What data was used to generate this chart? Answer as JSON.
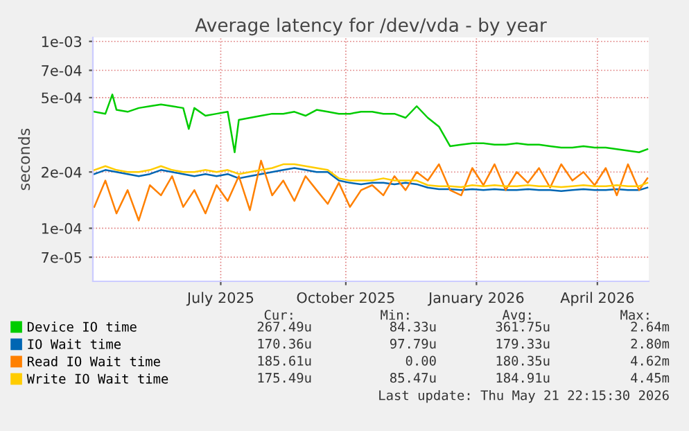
{
  "chart_data": {
    "type": "line",
    "title": "Average latency for /dev/vda - by year",
    "ylabel": "seconds",
    "log": "y",
    "grid": true,
    "legend": "bottom",
    "xlim": [
      "2025-04-16",
      "2026-05-21"
    ],
    "xticks": [
      {
        "value": "2025-07-17",
        "label": "July 2025"
      },
      {
        "value": "2025-10-15",
        "label": "October 2025"
      },
      {
        "value": "2026-01-17",
        "label": "January 2026"
      },
      {
        "value": "2026-04-14",
        "label": "April 2026"
      }
    ],
    "ylim": [
      5.2e-05,
      0.00105
    ],
    "yticks": [
      {
        "value": 7e-05,
        "label": "7e-05"
      },
      {
        "value": 0.0001,
        "label": "1e-04"
      },
      {
        "value": 0.0002,
        "label": "2e-04"
      },
      {
        "value": 0.0005,
        "label": "5e-04"
      },
      {
        "value": 0.0007,
        "label": "7e-04"
      },
      {
        "value": 0.001,
        "label": "1e-03"
      }
    ],
    "x": [
      "2025-04-17",
      "2025-04-25",
      "2025-05-03",
      "2025-05-11",
      "2025-05-19",
      "2025-05-27",
      "2025-06-04",
      "2025-06-12",
      "2025-06-20",
      "2025-06-28",
      "2025-07-06",
      "2025-07-14",
      "2025-07-22",
      "2025-07-30",
      "2025-08-07",
      "2025-08-15",
      "2025-08-23",
      "2025-08-31",
      "2025-09-08",
      "2025-09-16",
      "2025-09-24",
      "2025-10-02",
      "2025-10-10",
      "2025-10-18",
      "2025-10-26",
      "2025-11-03",
      "2025-11-11",
      "2025-11-19",
      "2025-11-27",
      "2025-12-05",
      "2025-12-13",
      "2025-12-21",
      "2025-12-29",
      "2026-01-06",
      "2026-01-14",
      "2026-01-22",
      "2026-01-30",
      "2026-02-07",
      "2026-02-15",
      "2026-02-23",
      "2026-03-03",
      "2026-03-11",
      "2026-03-19",
      "2026-03-27",
      "2026-04-04",
      "2026-04-12",
      "2026-04-20",
      "2026-04-28",
      "2026-05-06",
      "2026-05-14",
      "2026-05-20"
    ],
    "series": [
      {
        "name": "Device IO time",
        "color": "#00cc00",
        "x": [
          "2025-04-17",
          "2025-04-25",
          "2025-04-30",
          "2025-05-03",
          "2025-05-11",
          "2025-05-19",
          "2025-05-27",
          "2025-06-04",
          "2025-06-12",
          "2025-06-20",
          "2025-06-24",
          "2025-06-28",
          "2025-07-06",
          "2025-07-14",
          "2025-07-22",
          "2025-07-27",
          "2025-07-30",
          "2025-08-07",
          "2025-08-15",
          "2025-08-23",
          "2025-08-31",
          "2025-09-08",
          "2025-09-16",
          "2025-09-24",
          "2025-10-02",
          "2025-10-10",
          "2025-10-18",
          "2025-10-26",
          "2025-11-03",
          "2025-11-11",
          "2025-11-19",
          "2025-11-27",
          "2025-12-05",
          "2025-12-13",
          "2025-12-21",
          "2025-12-29",
          "2026-01-06",
          "2026-01-14",
          "2026-01-22",
          "2026-01-30",
          "2026-02-07",
          "2026-02-15",
          "2026-02-23",
          "2026-03-03",
          "2026-03-11",
          "2026-03-19",
          "2026-03-27",
          "2026-04-04",
          "2026-04-12",
          "2026-04-20",
          "2026-04-28",
          "2026-05-06",
          "2026-05-14",
          "2026-05-20"
        ],
        "values": [
          0.00042,
          0.00041,
          0.00052,
          0.00043,
          0.00042,
          0.00044,
          0.00045,
          0.00046,
          0.00045,
          0.00044,
          0.00034,
          0.00044,
          0.0004,
          0.00041,
          0.00042,
          0.000255,
          0.00038,
          0.00039,
          0.0004,
          0.00041,
          0.00041,
          0.00042,
          0.0004,
          0.00043,
          0.00042,
          0.00041,
          0.00041,
          0.00042,
          0.00042,
          0.00041,
          0.00041,
          0.00039,
          0.00045,
          0.00039,
          0.00035,
          0.000275,
          0.00028,
          0.000285,
          0.000285,
          0.00028,
          0.00028,
          0.000285,
          0.00028,
          0.00028,
          0.000275,
          0.00027,
          0.00027,
          0.000275,
          0.00027,
          0.00027,
          0.000265,
          0.00026,
          0.000255,
          0.000265
        ]
      },
      {
        "name": "IO Wait time",
        "color": "#0066b3",
        "values": [
          0.000195,
          0.000205,
          0.0002,
          0.000195,
          0.00019,
          0.000195,
          0.000205,
          0.0002,
          0.000195,
          0.00019,
          0.000195,
          0.00019,
          0.000195,
          0.000185,
          0.00019,
          0.000195,
          0.0002,
          0.000205,
          0.00021,
          0.000205,
          0.0002,
          0.0002,
          0.00018,
          0.000175,
          0.000172,
          0.000175,
          0.000175,
          0.000172,
          0.000175,
          0.000172,
          0.000165,
          0.000162,
          0.000162,
          0.00016,
          0.000162,
          0.00016,
          0.000162,
          0.00016,
          0.00016,
          0.000162,
          0.00016,
          0.00016,
          0.000158,
          0.00016,
          0.000162,
          0.00016,
          0.00016,
          0.000162,
          0.00016,
          0.00016,
          0.000165
        ]
      },
      {
        "name": "Read IO Wait time",
        "color": "#ff8000",
        "values": [
          0.00013,
          0.00018,
          0.00012,
          0.00016,
          0.00011,
          0.00017,
          0.00015,
          0.00019,
          0.00013,
          0.00016,
          0.00012,
          0.00017,
          0.00014,
          0.00019,
          0.000125,
          0.00023,
          0.00015,
          0.00018,
          0.00014,
          0.00019,
          0.00016,
          0.000135,
          0.000175,
          0.00013,
          0.00016,
          0.00017,
          0.00015,
          0.00019,
          0.00016,
          0.0002,
          0.00018,
          0.00022,
          0.00016,
          0.00015,
          0.00021,
          0.00017,
          0.00022,
          0.00016,
          0.0002,
          0.000175,
          0.00021,
          0.000165,
          0.00022,
          0.00018,
          0.0002,
          0.00017,
          0.00021,
          0.00015,
          0.00022,
          0.00016,
          0.000185
        ]
      },
      {
        "name": "Write IO Wait time",
        "color": "#ffcc00",
        "values": [
          0.000205,
          0.000215,
          0.000205,
          0.0002,
          0.0002,
          0.000205,
          0.000215,
          0.000205,
          0.0002,
          0.0002,
          0.000205,
          0.0002,
          0.000205,
          0.000195,
          0.0002,
          0.000205,
          0.00021,
          0.00022,
          0.00022,
          0.000215,
          0.00021,
          0.000205,
          0.000185,
          0.00018,
          0.00018,
          0.00018,
          0.000185,
          0.00018,
          0.00018,
          0.00018,
          0.00017,
          0.000168,
          0.000168,
          0.000166,
          0.00017,
          0.000168,
          0.00017,
          0.000168,
          0.000168,
          0.00017,
          0.000168,
          0.000168,
          0.000166,
          0.000168,
          0.00017,
          0.000168,
          0.000168,
          0.00017,
          0.000168,
          0.000168,
          0.000175
        ]
      }
    ],
    "annotations": [
      "Cur:",
      "Min:",
      "Avg:",
      "Max:",
      "267.49u",
      "84.33u",
      "361.75u",
      "2.64m",
      "170.36u",
      "97.79u",
      "179.33u",
      "2.80m",
      "185.61u",
      "0.00",
      "180.35u",
      "4.62m",
      "175.49u",
      "85.47u",
      "184.91u",
      "4.45m",
      "Last update: Thu May 21 22:15:30 2026"
    ]
  }
}
